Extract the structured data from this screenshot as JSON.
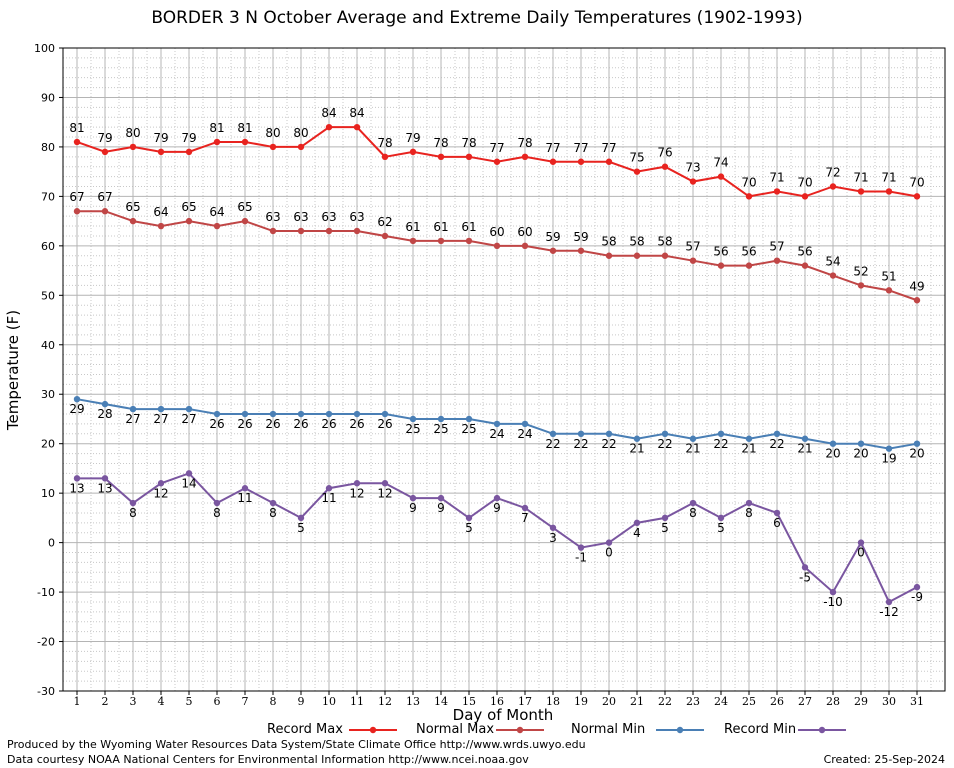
{
  "chart_data": {
    "type": "line",
    "title": "BORDER 3 N October Average and Extreme Daily Temperatures (1902-1993)",
    "xlabel": "Day of Month",
    "ylabel": "Temperature (F)",
    "x": [
      1,
      2,
      3,
      4,
      5,
      6,
      7,
      8,
      9,
      10,
      11,
      12,
      13,
      14,
      15,
      16,
      17,
      18,
      19,
      20,
      21,
      22,
      23,
      24,
      25,
      26,
      27,
      28,
      29,
      30,
      31
    ],
    "ylim": [
      -30,
      100
    ],
    "yticks": [
      -30,
      -20,
      -10,
      0,
      10,
      20,
      30,
      40,
      50,
      60,
      70,
      80,
      90,
      100
    ],
    "grid": true,
    "legend_position": "bottom",
    "series": [
      {
        "name": "Record Max",
        "color": "#e8231f",
        "values": [
          81,
          79,
          80,
          79,
          79,
          81,
          81,
          80,
          80,
          84,
          84,
          78,
          79,
          78,
          78,
          77,
          78,
          77,
          77,
          77,
          75,
          76,
          73,
          74,
          70,
          71,
          70,
          72,
          71,
          71,
          70
        ]
      },
      {
        "name": "Normal Max",
        "color": "#c04646",
        "values": [
          67,
          67,
          65,
          64,
          65,
          64,
          65,
          63,
          63,
          63,
          63,
          62,
          61,
          61,
          61,
          60,
          60,
          59,
          59,
          58,
          58,
          58,
          57,
          56,
          56,
          57,
          56,
          54,
          52,
          51,
          49
        ]
      },
      {
        "name": "Normal Min",
        "color": "#4a7fb5",
        "values": [
          29,
          28,
          27,
          27,
          27,
          26,
          26,
          26,
          26,
          26,
          26,
          26,
          25,
          25,
          25,
          24,
          24,
          22,
          22,
          22,
          21,
          22,
          21,
          22,
          21,
          22,
          21,
          20,
          20,
          19,
          20
        ]
      },
      {
        "name": "Record Min",
        "color": "#7a56a0",
        "values": [
          13,
          13,
          8,
          12,
          14,
          8,
          11,
          8,
          5,
          11,
          12,
          12,
          9,
          9,
          5,
          9,
          7,
          3,
          -1,
          0,
          4,
          5,
          8,
          5,
          8,
          6,
          -5,
          -10,
          0,
          -12,
          -9
        ]
      }
    ]
  },
  "footer": {
    "credit1": "Produced by the Wyoming Water Resources Data System/State Climate Office http://www.wrds.uwyo.edu",
    "credit2": "Data courtesy NOAA National Centers for Environmental Information http://www.ncei.noaa.gov",
    "created": "Created:  25-Sep-2024"
  }
}
